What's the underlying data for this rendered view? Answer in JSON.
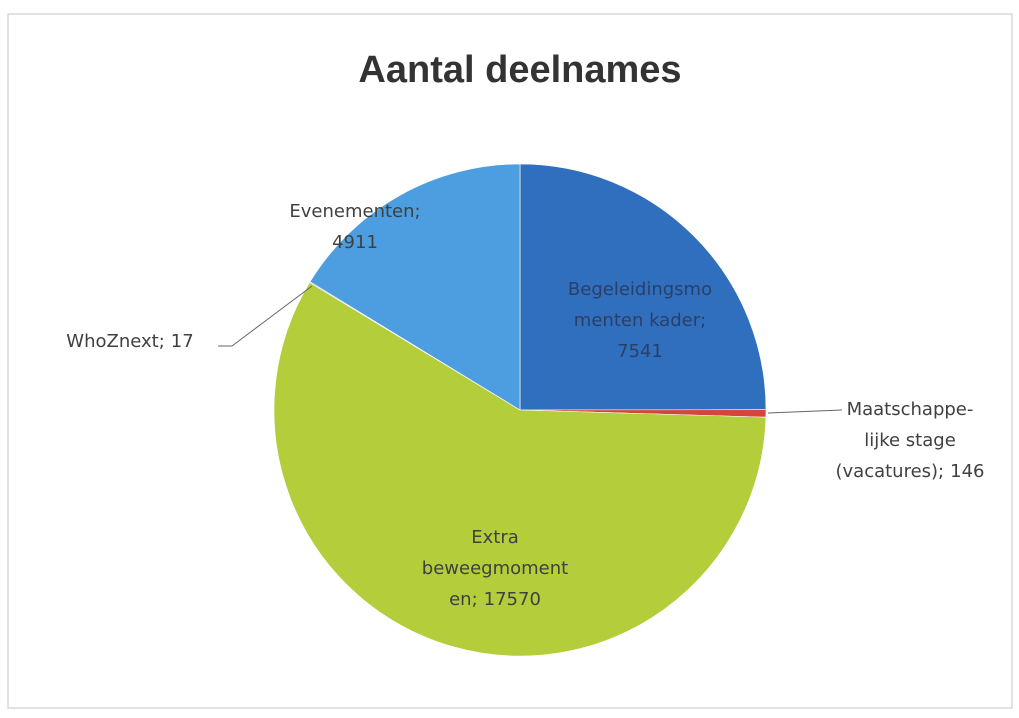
{
  "chart_data": {
    "type": "pie",
    "title": "Aantal deelnames",
    "categories": [
      [
        "Begeleidingsmo",
        "menten kader;"
      ],
      [
        "Maatschappe-",
        "lijke stage",
        "(vacatures);"
      ],
      [
        "Extra",
        "beweegmoment",
        "en;"
      ],
      [
        "WhoZnext;"
      ],
      [
        "Evenementen;"
      ]
    ],
    "values": [
      7541,
      146,
      17570,
      17,
      4911
    ],
    "colors": [
      "#2f6fbe",
      "#d4453c",
      "#b3cd3b",
      "#7a5aa8",
      "#4c9ee0"
    ]
  }
}
